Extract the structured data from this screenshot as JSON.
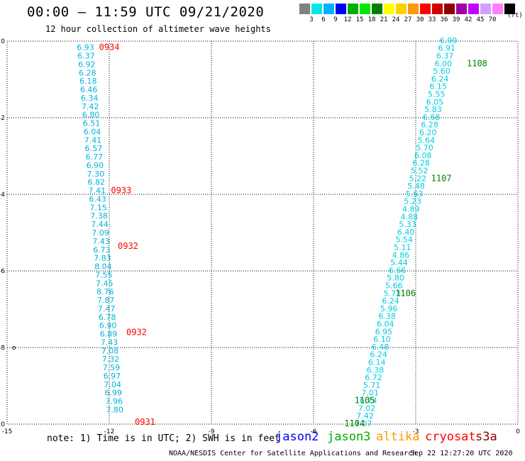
{
  "title": "00:00 – 11:59 UTC 09/21/2020",
  "subtitle": "12 hour collection of altimeter wave heights",
  "legend": {
    "colors": [
      "#808080",
      "#00e8e8",
      "#00b0ff",
      "#0000ff",
      "#00b000",
      "#00e800",
      "#008000",
      "#ffff00",
      "#ffd000",
      "#ff9900",
      "#ff0000",
      "#d00000",
      "#900000",
      "#a000a0",
      "#c000ff",
      "#d0a0ff",
      "#ff80ff",
      "#000000"
    ],
    "ticks": [
      "3",
      "6",
      "9",
      "12",
      "15",
      "18",
      "21",
      "24",
      "27",
      "30",
      "33",
      "36",
      "39",
      "42",
      "45",
      "70"
    ],
    "unit": "(ft)"
  },
  "note": "note: 1) Time is in UTC; 2) SWH is in feet",
  "satellites": [
    {
      "name": "jason2",
      "color": "#0000ff"
    },
    {
      "name": "jason3",
      "color": "#00aa00"
    },
    {
      "name": "altika",
      "color": "#ff9900"
    },
    {
      "name": "cryosat",
      "color": "#ff0000"
    },
    {
      "name": "s3a",
      "color": "#900000"
    }
  ],
  "credit": "NOAA/NESDIS Center for Satellite Applications and Research",
  "timestamp": "Sep 22 12:27:20 UTC 2020",
  "chart_data": {
    "type": "scatter",
    "xlim": [
      -15,
      0
    ],
    "ylim": [
      -10,
      0
    ],
    "x_ticks": [
      "-15",
      "-12",
      "-9",
      "-6",
      "-3",
      "0"
    ],
    "y_ticks": [
      "0",
      "-2",
      "-4",
      "-6",
      "-8",
      "-10"
    ],
    "grid": true,
    "series": [
      {
        "name": "cryosat",
        "color": "#00b4dc",
        "x": [
          -12.7,
          -12.68,
          -12.66,
          -12.64,
          -12.62,
          -12.6,
          -12.58,
          -12.56,
          -12.54,
          -12.52,
          -12.5,
          -12.48,
          -12.46,
          -12.44,
          -12.42,
          -12.4,
          -12.38,
          -12.36,
          -12.34,
          -12.32,
          -12.3,
          -12.28,
          -12.26,
          -12.24,
          -12.22,
          -12.2,
          -12.18,
          -12.16,
          -12.14,
          -12.12,
          -12.1,
          -12.08,
          -12.06,
          -12.04,
          -12.02,
          -12.0,
          -11.98,
          -11.96,
          -11.94,
          -11.92,
          -11.9,
          -11.88,
          -11.86,
          -11.84,
          -11.82,
          -11.8,
          -11.78,
          -11.76,
          -11.74,
          -11.72,
          -11.7
        ],
        "y": [
          -0.16,
          -0.38,
          -0.6,
          -0.82,
          -1.04,
          -1.26,
          -1.48,
          -1.7,
          -1.92,
          -2.14,
          -2.36,
          -2.58,
          -2.8,
          -3.02,
          -3.24,
          -3.46,
          -3.68,
          -3.9,
          -4.12,
          -4.34,
          -4.56,
          -4.78,
          -5.0,
          -5.22,
          -5.44,
          -5.66,
          -5.88,
          -6.1,
          -6.32,
          -6.54,
          -6.76,
          -6.98,
          -7.2,
          -7.42,
          -7.64,
          -7.86,
          -8.08,
          -8.3,
          -8.52,
          -8.74,
          -8.96,
          -9.18,
          -9.4,
          -9.62,
          -9.84,
          -9.94,
          -9.96,
          -9.97,
          -9.98,
          -9.99,
          -10.0
        ],
        "values": [
          "6.93",
          "6.37",
          "6.92",
          "6.28",
          "6.18",
          "6.46",
          "6.34",
          "7.42",
          "6.80",
          "6.51",
          "6.04",
          "7.41",
          "6.57",
          "6.77",
          "6.90",
          "7.30",
          "6.82",
          "7.41",
          "6.43",
          "7.15",
          "7.38",
          "7.44",
          "7.09",
          "7.43",
          "6.73",
          "7.83",
          "8.04",
          "7.55",
          "7.45",
          "8.76",
          "7.87",
          "7.47",
          "6.78",
          "6.90",
          "6.89",
          "7.43",
          "7.08",
          "7.32",
          "7.59",
          "6.97",
          "7.04",
          "6.99",
          "7.96",
          "7.80",
          "",
          "",
          "",
          "",
          "",
          "",
          ""
        ]
      },
      {
        "name": "jason3",
        "color": "#00cce0",
        "x": [
          -2.04,
          -2.09,
          -2.14,
          -2.19,
          -2.24,
          -2.29,
          -2.34,
          -2.39,
          -2.44,
          -2.49,
          -2.54,
          -2.59,
          -2.64,
          -2.69,
          -2.74,
          -2.79,
          -2.84,
          -2.89,
          -2.94,
          -2.99,
          -3.04,
          -3.09,
          -3.14,
          -3.19,
          -3.24,
          -3.29,
          -3.34,
          -3.39,
          -3.44,
          -3.49,
          -3.54,
          -3.59,
          -3.64,
          -3.69,
          -3.74,
          -3.79,
          -3.84,
          -3.89,
          -3.94,
          -3.99,
          -4.04,
          -4.09,
          -4.14,
          -4.19,
          -4.24,
          -4.29,
          -4.34,
          -4.39,
          -4.44,
          -4.49,
          -4.54,
          -4.59,
          -4.64,
          -4.69,
          -4.74,
          -4.79,
          -4.84,
          -4.89,
          -4.94,
          -4.99
        ],
        "y": [
          0.02,
          -0.18,
          -0.38,
          -0.58,
          -0.78,
          -0.98,
          -1.18,
          -1.38,
          -1.58,
          -1.78,
          -1.98,
          -2.18,
          -2.38,
          -2.58,
          -2.78,
          -2.98,
          -3.18,
          -3.38,
          -3.58,
          -3.78,
          -3.98,
          -4.18,
          -4.38,
          -4.58,
          -4.78,
          -4.98,
          -5.18,
          -5.38,
          -5.58,
          -5.78,
          -5.98,
          -6.18,
          -6.38,
          -6.58,
          -6.78,
          -6.98,
          -7.18,
          -7.38,
          -7.58,
          -7.78,
          -7.98,
          -8.18,
          -8.38,
          -8.58,
          -8.78,
          -8.98,
          -9.18,
          -9.38,
          -9.58,
          -9.78,
          -9.98,
          -10.0,
          -10.0,
          -10.0,
          -10.0,
          -10.0,
          -10.0,
          -10.0,
          -10.0,
          -10.0
        ],
        "values": [
          "6.99",
          "6.91",
          "6.37",
          "6.00",
          "5.60",
          "6.24",
          "6.15",
          "5.55",
          "6.05",
          "5.83",
          "6.68",
          "6.28",
          "6.20",
          "5.64",
          "5.70",
          "6.08",
          "6.28",
          "5.52",
          "5.22",
          "5.48",
          "5.63",
          "5.23",
          "4.89",
          "4.88",
          "5.33",
          "6.40",
          "5.54",
          "5.11",
          "4.86",
          "5.44",
          "6.66",
          "5.80",
          "5.66",
          "5.73",
          "6.24",
          "5.96",
          "6.38",
          "6.04",
          "6.95",
          "6.10",
          "6.48",
          "6.24",
          "6.14",
          "6.38",
          "6.72",
          "5.71",
          "7.01",
          "6.74",
          "7.02",
          "7.42",
          "7.07",
          "",
          "",
          "",
          "",
          "",
          "",
          "",
          "",
          ""
        ]
      }
    ],
    "time_labels": [
      {
        "text": "0934",
        "color": "#ff0000",
        "x": -12.3,
        "y": -0.16
      },
      {
        "text": "0933",
        "color": "#ff0000",
        "x": -11.95,
        "y": -3.9
      },
      {
        "text": "0932",
        "color": "#ff0000",
        "x": -11.75,
        "y": -5.35
      },
      {
        "text": "0932",
        "color": "#ff0000",
        "x": -11.5,
        "y": -7.6
      },
      {
        "text": "0931",
        "color": "#ff0000",
        "x": -11.25,
        "y": -9.94
      },
      {
        "text": "1108",
        "color": "#008000",
        "x": -1.5,
        "y": -0.58
      },
      {
        "text": "1107",
        "color": "#008000",
        "x": -2.55,
        "y": -3.58
      },
      {
        "text": "1106",
        "color": "#008000",
        "x": -3.6,
        "y": -6.58
      },
      {
        "text": "1105",
        "color": "#008000",
        "x": -4.8,
        "y": -9.38
      },
      {
        "text": "1104",
        "color": "#008000",
        "x": -5.1,
        "y": -9.98
      }
    ],
    "markers": [
      {
        "text": "o",
        "x": -14.8,
        "y": -8.0
      }
    ]
  }
}
